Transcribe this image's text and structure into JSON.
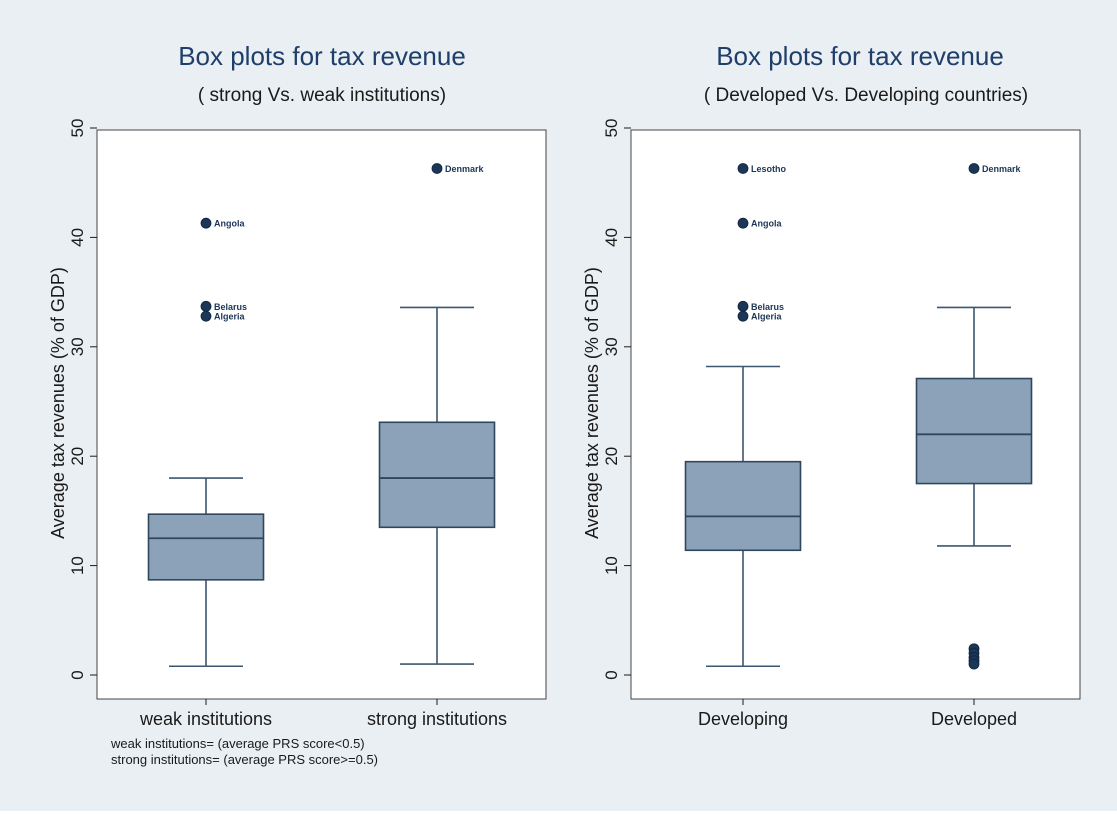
{
  "chart_data": [
    {
      "type": "box",
      "title": "Box plots for tax revenue",
      "subtitle": "( strong  Vs. weak institutions)",
      "ylabel": "Average tax revenues (% of GDP)",
      "ylim": [
        0,
        50
      ],
      "yticks": [
        "0",
        "10",
        "20",
        "30",
        "40",
        "50"
      ],
      "grid": false,
      "categories": [
        "weak institutions",
        "strong institutions"
      ],
      "boxes": [
        {
          "min": 0.8,
          "q1": 8.7,
          "median": 12.5,
          "q3": 14.7,
          "max": 18.0,
          "outliers": [
            {
              "value": 41.3,
              "label": "Angola"
            },
            {
              "value": 33.7,
              "label": "Belarus"
            },
            {
              "value": 32.8,
              "label": "Algeria"
            }
          ]
        },
        {
          "min": 1.0,
          "q1": 13.5,
          "median": 18.0,
          "q3": 23.1,
          "max": 33.6,
          "outliers": [
            {
              "value": 46.3,
              "label": "Denmark"
            }
          ]
        }
      ],
      "notes": [
        "weak institutions= (average PRS score<0.5)",
        "strong institutions= (average PRS score>=0.5)"
      ]
    },
    {
      "type": "box",
      "title": "Box plots for tax revenue",
      "subtitle": "( Developed  Vs. Developing countries)",
      "ylabel": "Average tax revenues (% of GDP)",
      "ylim": [
        0,
        50
      ],
      "yticks": [
        "0",
        "10",
        "20",
        "30",
        "40",
        "50"
      ],
      "grid": false,
      "categories": [
        "Developing",
        "Developed"
      ],
      "boxes": [
        {
          "min": 0.8,
          "q1": 11.4,
          "median": 14.5,
          "q3": 19.5,
          "max": 28.2,
          "outliers": [
            {
              "value": 46.3,
              "label": "Lesotho"
            },
            {
              "value": 41.3,
              "label": "Angola"
            },
            {
              "value": 33.7,
              "label": "Belarus"
            },
            {
              "value": 32.8,
              "label": "Algeria"
            }
          ]
        },
        {
          "min": 11.8,
          "q1": 17.5,
          "median": 22.0,
          "q3": 27.1,
          "max": 33.6,
          "outliers": [
            {
              "value": 46.3,
              "label": "Denmark"
            },
            {
              "value": 2.4,
              "label": ""
            },
            {
              "value": 2.0,
              "label": ""
            },
            {
              "value": 1.6,
              "label": ""
            },
            {
              "value": 1.3,
              "label": ""
            },
            {
              "value": 1.0,
              "label": ""
            }
          ]
        }
      ],
      "notes": []
    }
  ],
  "colors": {
    "background": "#e9eff3",
    "box_fill": "#8ca2b8",
    "box_stroke": "#2f475e",
    "whisker": "#3d5670",
    "marker": "#1b3656",
    "title": "#1f3e6a",
    "axis": "#1a1a1a"
  }
}
